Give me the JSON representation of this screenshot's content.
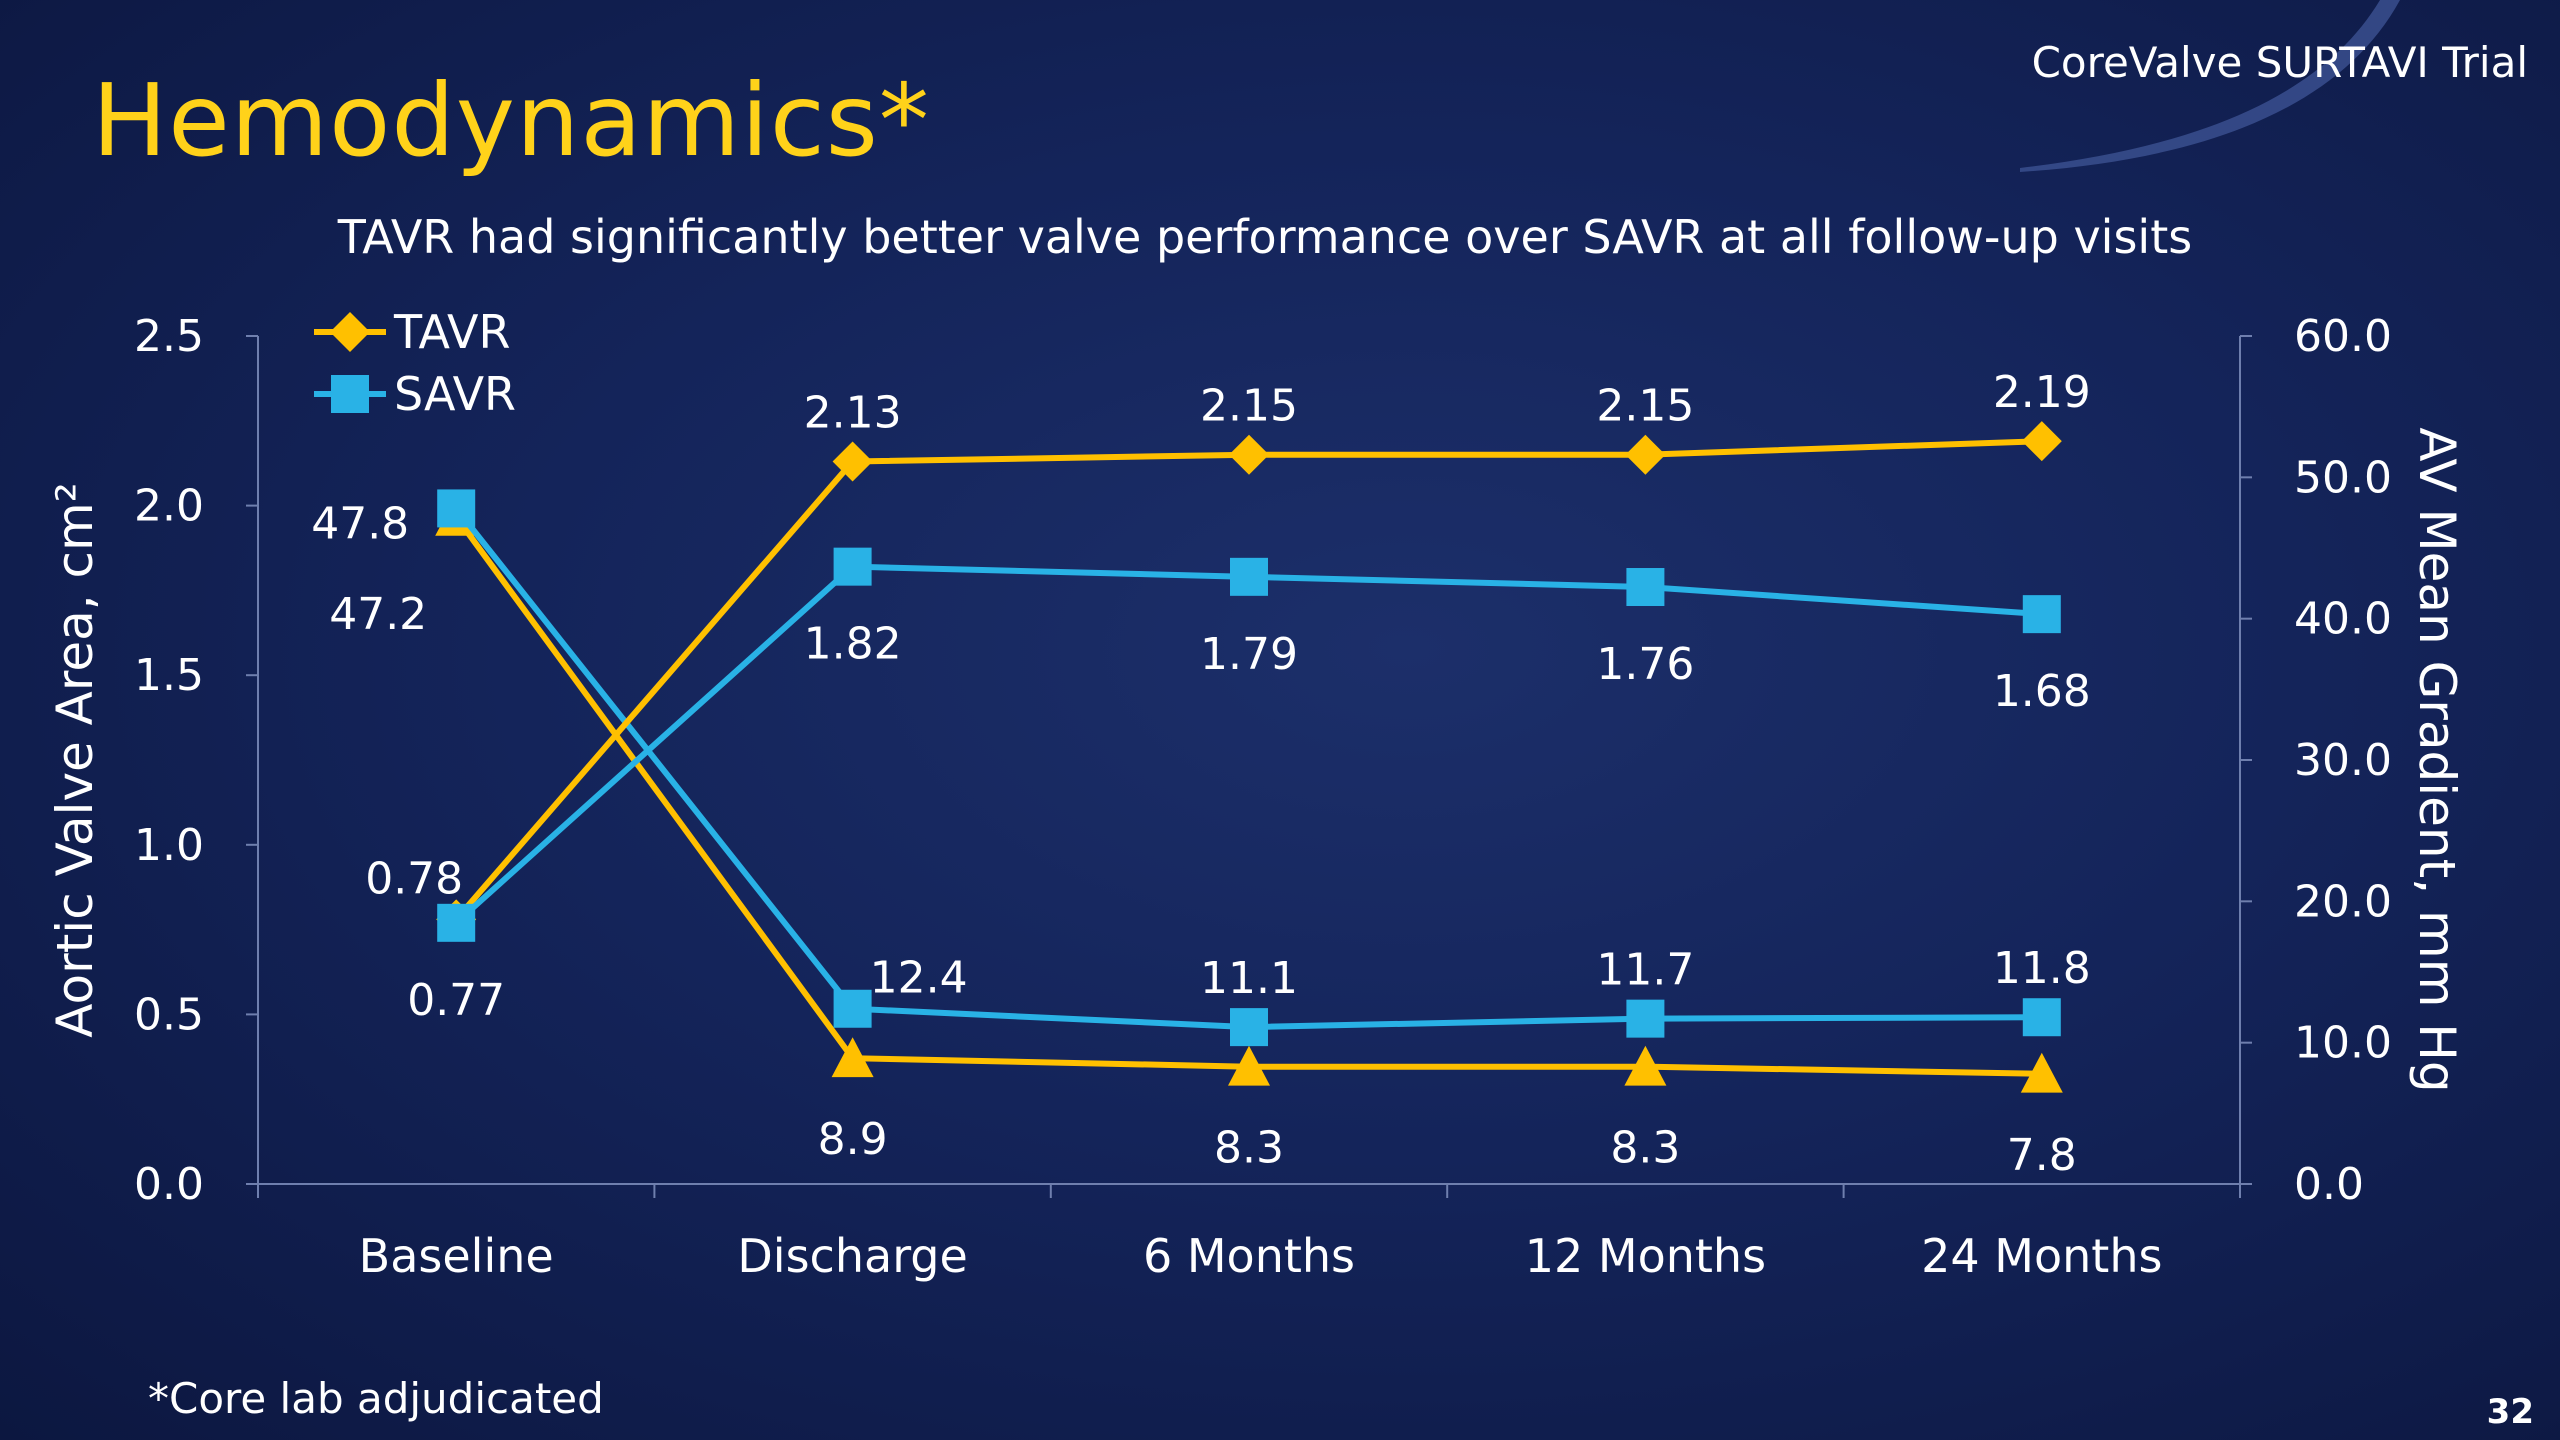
{
  "slide": {
    "title": "Hemodynamics*",
    "brand": "CoreValve SURTAVI Trial",
    "subtitle": "TAVR had significantly better valve performance over SAVR at all follow-up visits",
    "footnote": "*Core lab adjudicated",
    "page_number": "32"
  },
  "colors": {
    "tavr": "#ffc000",
    "savr": "#29b2e6",
    "title": "#ffd21a",
    "background": "#14245a",
    "text": "#ffffff"
  },
  "chart_data": {
    "type": "line",
    "categories": [
      "Baseline",
      "Discharge",
      "6 Months",
      "12 Months",
      "24 Months"
    ],
    "y_left": {
      "label": "Aortic Valve Area, cm²",
      "range": [
        0,
        2.5
      ],
      "ticks": [
        "0.0",
        "0.5",
        "1.0",
        "1.5",
        "2.0",
        "2.5"
      ]
    },
    "y_right": {
      "label": "AV Mean Gradient, mm Hg",
      "range": [
        0,
        60
      ],
      "ticks": [
        "0.0",
        "10.0",
        "20.0",
        "30.0",
        "40.0",
        "50.0",
        "60.0"
      ]
    },
    "grid": false,
    "legend": {
      "position": "top-left",
      "entries": [
        {
          "name": "TAVR",
          "marker": "diamond",
          "color": "#ffc000"
        },
        {
          "name": "SAVR",
          "marker": "square",
          "color": "#29b2e6"
        }
      ]
    },
    "series": [
      {
        "name": "TAVR",
        "metric": "area",
        "axis": "left",
        "marker": "diamond",
        "color": "#ffc000",
        "values": [
          0.78,
          2.13,
          2.15,
          2.15,
          2.19
        ],
        "labels": [
          "0.78",
          "2.13",
          "2.15",
          "2.15",
          "2.19"
        ]
      },
      {
        "name": "SAVR",
        "metric": "area",
        "axis": "left",
        "marker": "square",
        "color": "#29b2e6",
        "values": [
          0.77,
          1.82,
          1.79,
          1.76,
          1.68
        ],
        "labels": [
          "0.77",
          "1.82",
          "1.79",
          "1.76",
          "1.68"
        ]
      },
      {
        "name": "TAVR",
        "metric": "gradient",
        "axis": "right",
        "marker": "triangle",
        "color": "#ffc000",
        "values": [
          47.2,
          8.9,
          8.3,
          8.3,
          7.8
        ],
        "labels": [
          "47.2",
          "8.9",
          "8.3",
          "8.3",
          "7.8"
        ]
      },
      {
        "name": "SAVR",
        "metric": "gradient",
        "axis": "right",
        "marker": "square",
        "color": "#29b2e6",
        "values": [
          47.8,
          12.4,
          11.1,
          11.7,
          11.8
        ],
        "labels": [
          "47.8",
          "12.4",
          "11.1",
          "11.7",
          "11.8"
        ]
      }
    ]
  }
}
